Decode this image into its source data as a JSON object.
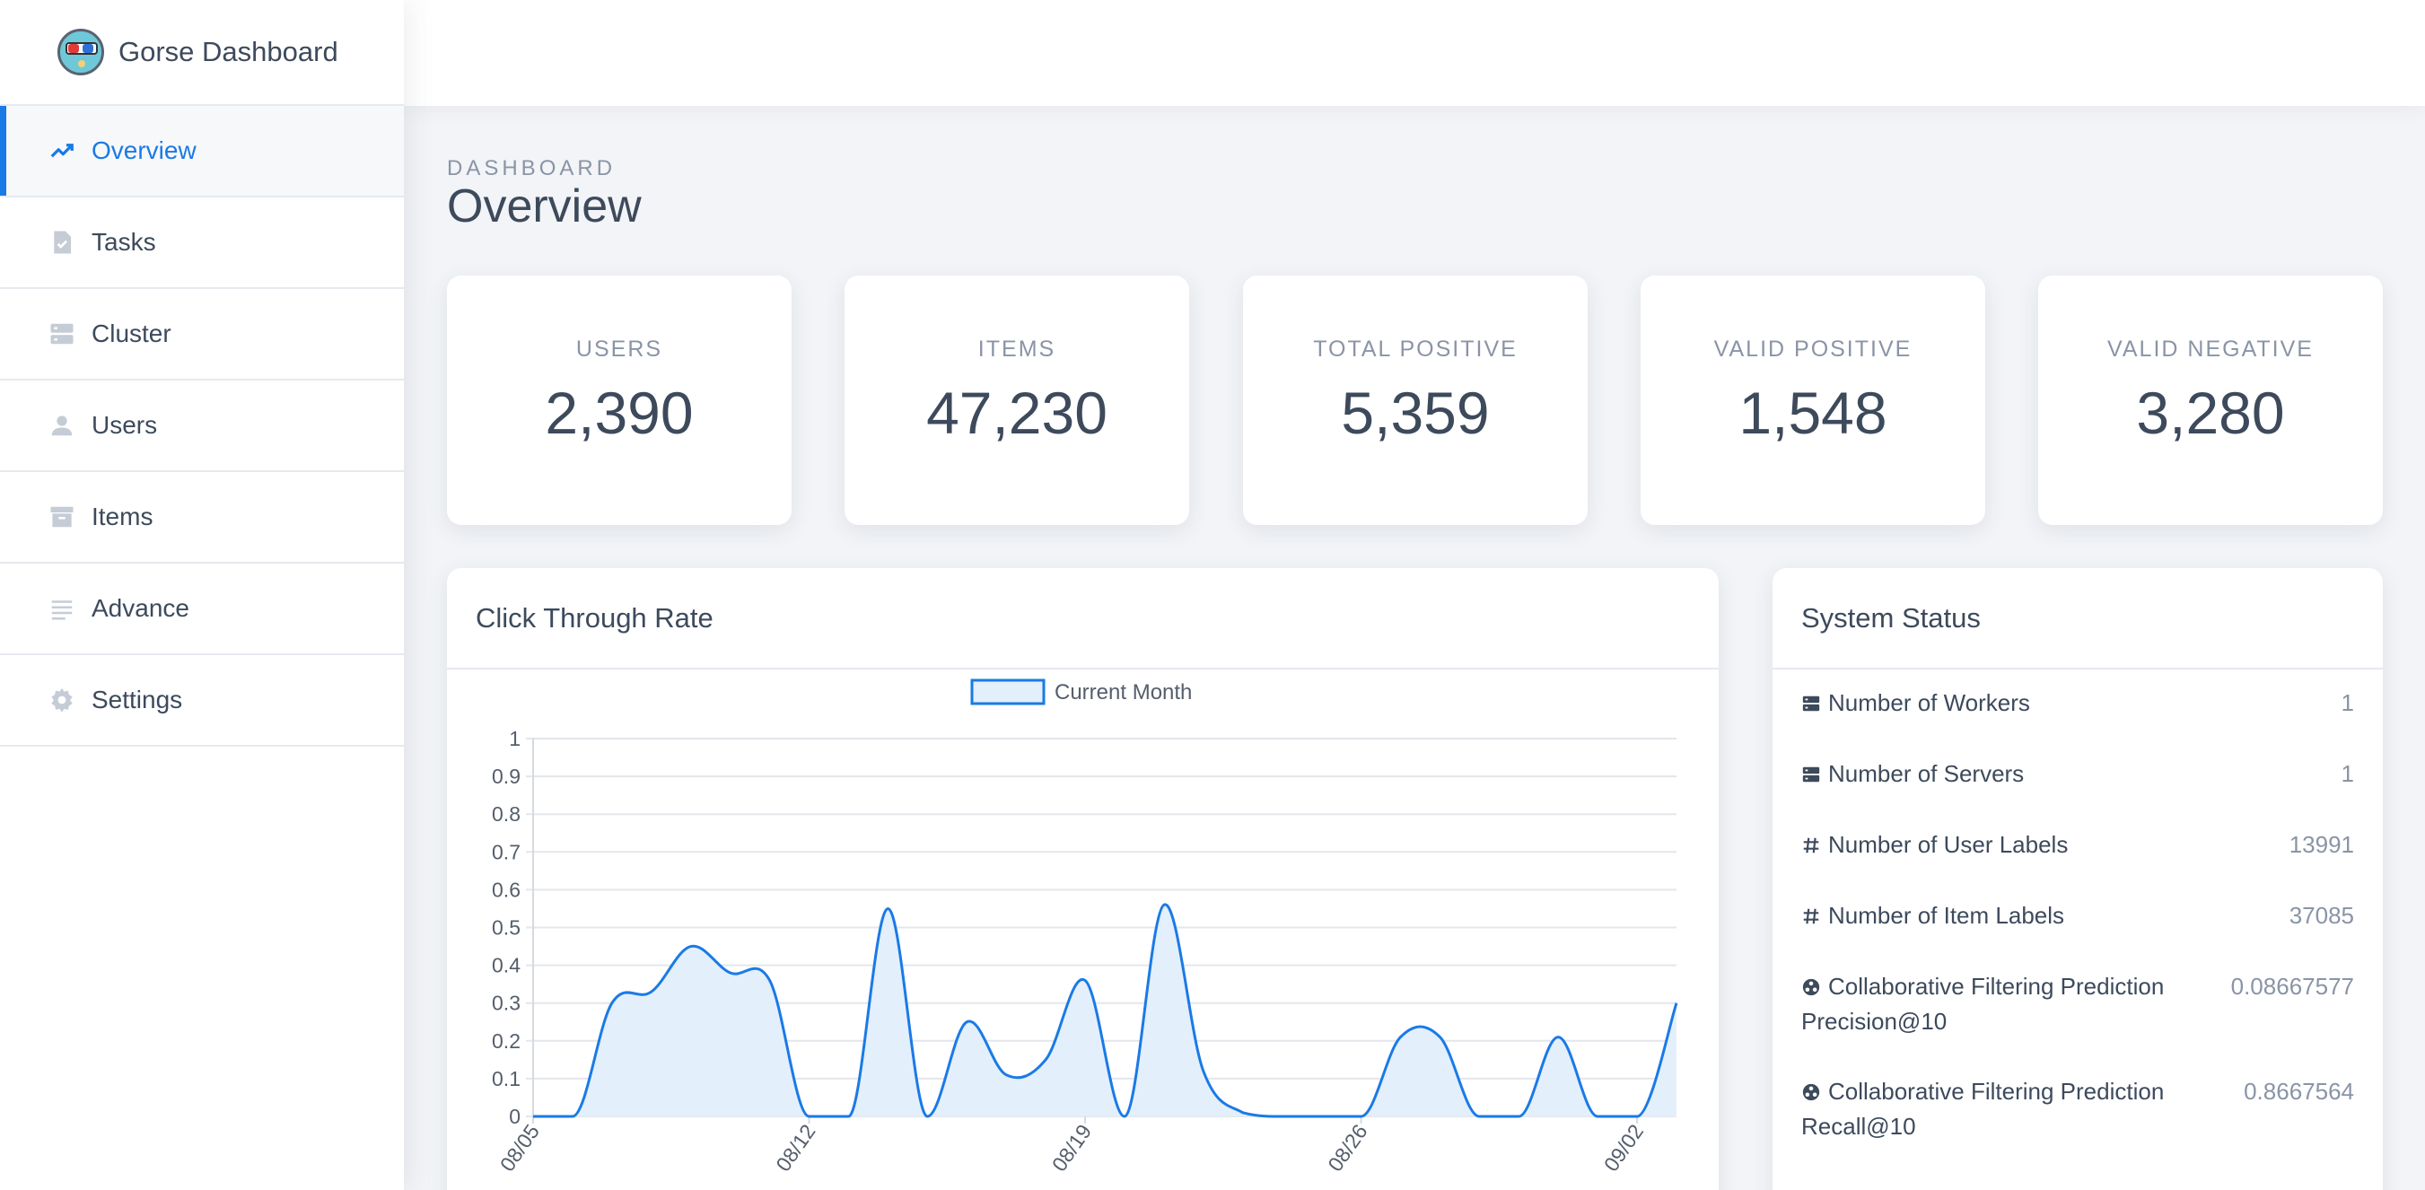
{
  "app": {
    "title": "Gorse Dashboard"
  },
  "sidebar": {
    "items": [
      {
        "label": "Overview",
        "icon": "trending-up-icon",
        "active": true
      },
      {
        "label": "Tasks",
        "icon": "task-check-icon"
      },
      {
        "label": "Cluster",
        "icon": "server-icon"
      },
      {
        "label": "Users",
        "icon": "user-icon"
      },
      {
        "label": "Items",
        "icon": "archive-icon"
      },
      {
        "label": "Advance",
        "icon": "lines-icon"
      },
      {
        "label": "Settings",
        "icon": "gear-icon"
      }
    ]
  },
  "page": {
    "subtitle": "DASHBOARD",
    "title": "Overview"
  },
  "stats": [
    {
      "label": "USERS",
      "value": "2,390"
    },
    {
      "label": "ITEMS",
      "value": "47,230"
    },
    {
      "label": "TOTAL POSITIVE",
      "value": "5,359"
    },
    {
      "label": "VALID POSITIVE",
      "value": "1,548"
    },
    {
      "label": "VALID NEGATIVE",
      "value": "3,280"
    }
  ],
  "ctr_panel": {
    "title": "Click Through Rate"
  },
  "chart_data": {
    "type": "area",
    "title": "",
    "xlabel": "",
    "ylabel": "",
    "ylim": [
      0,
      1
    ],
    "yticks": [
      "0",
      "0.1",
      "0.2",
      "0.3",
      "0.4",
      "0.5",
      "0.6",
      "0.7",
      "0.8",
      "0.9",
      "1"
    ],
    "xtick_labels": [
      "08/05",
      "08/12",
      "08/19",
      "08/26",
      "09/02"
    ],
    "legend": "top-center",
    "grid": true,
    "color": "#1a7ae6",
    "fill": "#e3effb",
    "x": [
      "08/05",
      "08/06",
      "08/07",
      "08/08",
      "08/09",
      "08/10",
      "08/11",
      "08/12",
      "08/13",
      "08/14",
      "08/15",
      "08/16",
      "08/17",
      "08/18",
      "08/19",
      "08/20",
      "08/21",
      "08/22",
      "08/23",
      "08/24",
      "08/25",
      "08/26",
      "08/27",
      "08/28",
      "08/29",
      "08/30",
      "08/31",
      "09/01",
      "09/02",
      "09/03"
    ],
    "series": [
      {
        "name": "Current Month",
        "values": [
          0,
          0,
          0.3,
          0.33,
          0.45,
          0.38,
          0.36,
          0,
          0,
          0.55,
          0,
          0.25,
          0.11,
          0.15,
          0.36,
          0,
          0.56,
          0.12,
          0.01,
          0,
          0,
          0,
          0.21,
          0.21,
          0,
          0,
          0.21,
          0,
          0,
          0.3
        ]
      }
    ]
  },
  "status_panel": {
    "title": "System Status",
    "rows": [
      {
        "label": "Number of Workers",
        "value": "1",
        "icon": "server-icon"
      },
      {
        "label": "Number of Servers",
        "value": "1",
        "icon": "server-icon"
      },
      {
        "label": "Number of User Labels",
        "value": "13991",
        "icon": "hash-icon"
      },
      {
        "label": "Number of Item Labels",
        "value": "37085",
        "icon": "hash-icon"
      },
      {
        "label": "Collaborative Filtering Prediction Precision@10",
        "value": "0.08667577",
        "icon": "model-icon"
      },
      {
        "label": "Collaborative Filtering Prediction Recall@10",
        "value": "0.8667564",
        "icon": "model-icon"
      }
    ]
  }
}
